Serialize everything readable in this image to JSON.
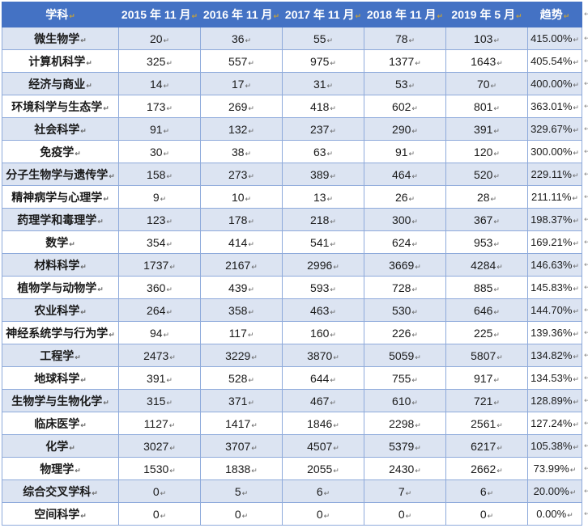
{
  "table": {
    "columns": [
      "学科",
      "2015 年 11 月",
      "2016 年 11 月",
      "2017 年 11 月",
      "2018 年 11 月",
      "2019 年 5 月",
      "趋势"
    ],
    "rows": [
      {
        "subject": "微生物学",
        "values": [
          "20",
          "36",
          "55",
          "78",
          "103"
        ],
        "trend": "415.00%"
      },
      {
        "subject": "计算机科学",
        "values": [
          "325",
          "557",
          "975",
          "1377",
          "1643"
        ],
        "trend": "405.54%"
      },
      {
        "subject": "经济与商业",
        "values": [
          "14",
          "17",
          "31",
          "53",
          "70"
        ],
        "trend": "400.00%"
      },
      {
        "subject": "环境科学与生态学",
        "values": [
          "173",
          "269",
          "418",
          "602",
          "801"
        ],
        "trend": "363.01%"
      },
      {
        "subject": "社会科学",
        "values": [
          "91",
          "132",
          "237",
          "290",
          "391"
        ],
        "trend": "329.67%"
      },
      {
        "subject": "免疫学",
        "values": [
          "30",
          "38",
          "63",
          "91",
          "120"
        ],
        "trend": "300.00%"
      },
      {
        "subject": "分子生物学与遗传学",
        "values": [
          "158",
          "273",
          "389",
          "464",
          "520"
        ],
        "trend": "229.11%"
      },
      {
        "subject": "精神病学与心理学",
        "values": [
          "9",
          "10",
          "13",
          "26",
          "28"
        ],
        "trend": "211.11%"
      },
      {
        "subject": "药理学和毒理学",
        "values": [
          "123",
          "178",
          "218",
          "300",
          "367"
        ],
        "trend": "198.37%"
      },
      {
        "subject": "数学",
        "values": [
          "354",
          "414",
          "541",
          "624",
          "953"
        ],
        "trend": "169.21%"
      },
      {
        "subject": "材料科学",
        "values": [
          "1737",
          "2167",
          "2996",
          "3669",
          "4284"
        ],
        "trend": "146.63%"
      },
      {
        "subject": "植物学与动物学",
        "values": [
          "360",
          "439",
          "593",
          "728",
          "885"
        ],
        "trend": "145.83%"
      },
      {
        "subject": "农业科学",
        "values": [
          "264",
          "358",
          "463",
          "530",
          "646"
        ],
        "trend": "144.70%"
      },
      {
        "subject": "神经系统学与行为学",
        "values": [
          "94",
          "117",
          "160",
          "226",
          "225"
        ],
        "trend": "139.36%"
      },
      {
        "subject": "工程学",
        "values": [
          "2473",
          "3229",
          "3870",
          "5059",
          "5807"
        ],
        "trend": "134.82%"
      },
      {
        "subject": "地球科学",
        "values": [
          "391",
          "528",
          "644",
          "755",
          "917"
        ],
        "trend": "134.53%"
      },
      {
        "subject": "生物学与生物化学",
        "values": [
          "315",
          "371",
          "467",
          "610",
          "721"
        ],
        "trend": "128.89%"
      },
      {
        "subject": "临床医学",
        "values": [
          "1127",
          "1417",
          "1846",
          "2298",
          "2561"
        ],
        "trend": "127.24%"
      },
      {
        "subject": "化学",
        "values": [
          "3027",
          "3707",
          "4507",
          "5379",
          "6217"
        ],
        "trend": "105.38%"
      },
      {
        "subject": "物理学",
        "values": [
          "1530",
          "1838",
          "2055",
          "2430",
          "2662"
        ],
        "trend": "73.99%"
      },
      {
        "subject": "综合交叉学科",
        "values": [
          "0",
          "5",
          "6",
          "7",
          "6"
        ],
        "trend": "20.00%"
      },
      {
        "subject": "空间科学",
        "values": [
          "0",
          "0",
          "0",
          "0",
          "0"
        ],
        "trend": "0.00%"
      }
    ]
  },
  "markers": {
    "cell_end": "↵",
    "row_end": "↵"
  },
  "colors": {
    "header_bg": "#4472C4",
    "header_text": "#FFFFFF",
    "row_band": "#DCE4F2",
    "border": "#8EAADB",
    "header_marker": "#C4A13C",
    "cell_marker": "#666666"
  }
}
